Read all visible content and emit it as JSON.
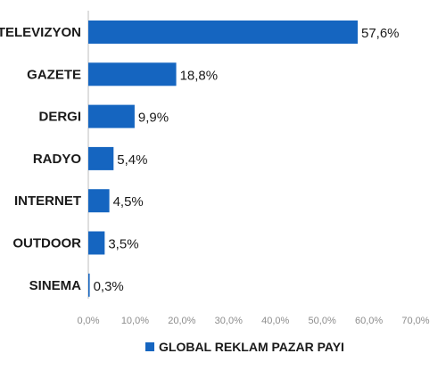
{
  "chart_data": {
    "type": "bar",
    "orientation": "horizontal",
    "categories": [
      "TELEVIZYON",
      "GAZETE",
      "DERGI",
      "RADYO",
      "INTERNET",
      "OUTDOOR",
      "SINEMA"
    ],
    "series": [
      {
        "name": "GLOBAL REKLAM PAZAR PAYI",
        "values": [
          57.6,
          18.8,
          9.9,
          5.4,
          4.5,
          3.5,
          0.3
        ],
        "value_labels": [
          "57,6%",
          "18,8%",
          "9,9%",
          "5,4%",
          "4,5%",
          "3,5%",
          "0,3%"
        ]
      }
    ],
    "x_ticks": [
      "0,0%",
      "10,0%",
      "20,0%",
      "30,0%",
      "40,0%",
      "50,0%",
      "60,0%",
      "70,0%"
    ],
    "xlim": [
      0,
      70
    ],
    "grid": false,
    "legend_position": "bottom",
    "colors": {
      "bar": "#1565c0",
      "axis": "#bdbdbd",
      "tick": "#8c8c8c"
    }
  }
}
